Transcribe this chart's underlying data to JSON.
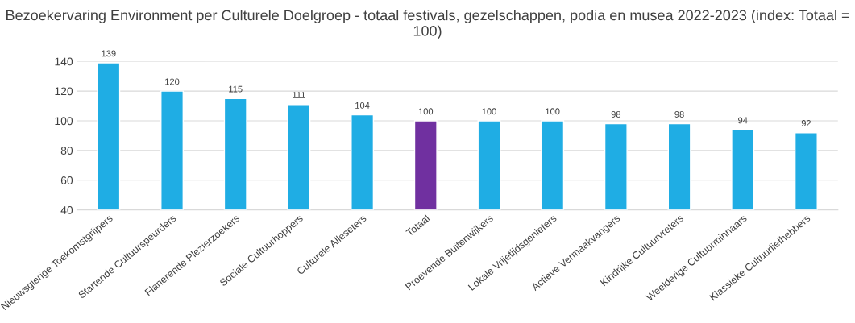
{
  "chart_data": {
    "type": "bar",
    "title": "Bezoekervaring Environment per Culturele Doelgroep - totaal festivals, gezelschappen, podia en musea 2022-2023 (index: Totaal = 100)",
    "categories": [
      "Nieuwsgierige Toekomstgrijpers",
      "Startende Cultuurspeurders",
      "Flanerende Plezierzoekers",
      "Sociale Cultuurhoppers",
      "Culturele Alleseters",
      "Totaal",
      "Proevende Buitenwijkers",
      "Lokale Vrijetijdsgenieters",
      "Actieve Vermaakvangers",
      "Kindrijke Cultuurvreters",
      "Weelderige Cultuurminnaars",
      "Klassieke Cultuurliefhebbers"
    ],
    "values": [
      139,
      120,
      115,
      111,
      104,
      100,
      100,
      100,
      98,
      98,
      94,
      92
    ],
    "colors": [
      "#1fade4",
      "#1fade4",
      "#1fade4",
      "#1fade4",
      "#1fade4",
      "#7030a0",
      "#1fade4",
      "#1fade4",
      "#1fade4",
      "#1fade4",
      "#1fade4",
      "#1fade4"
    ],
    "ylim": [
      40,
      140
    ],
    "yticks": [
      40,
      60,
      80,
      100,
      120,
      140
    ],
    "grid": "y",
    "data_labels": true
  }
}
